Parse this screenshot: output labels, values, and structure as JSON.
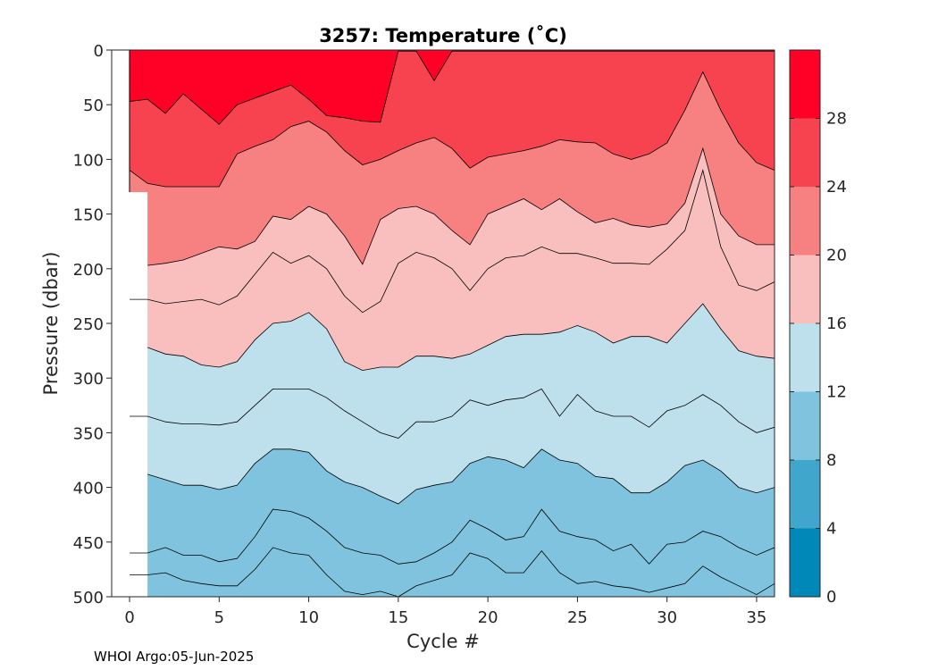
{
  "chart_data": {
    "type": "contour",
    "title": "3257:  Temperature (˚C)",
    "xlabel": "Cycle #",
    "ylabel": "Pressure (dbar)",
    "xlim": [
      -1,
      36
    ],
    "ylim": [
      0,
      500
    ],
    "y_reversed": true,
    "grid": false,
    "x_ticks": [
      0,
      5,
      10,
      15,
      20,
      25,
      30,
      35
    ],
    "y_ticks": [
      0,
      50,
      100,
      150,
      200,
      250,
      300,
      350,
      400,
      450,
      500
    ],
    "colorbar": {
      "position": "right",
      "range": [
        0,
        32
      ],
      "ticks": [
        0,
        4,
        8,
        12,
        16,
        20,
        24,
        28
      ],
      "band_edges": [
        0,
        4,
        8,
        12,
        16,
        20,
        24,
        28,
        32
      ],
      "band_colors": [
        "#0089B8",
        "#41A6CC",
        "#80C3DE",
        "#BEE0EC",
        "#F9BEBE",
        "#F78080",
        "#F7434F",
        "#FF0026"
      ]
    },
    "data_x_range": [
      0,
      36
    ],
    "no_data_region": {
      "cycles": [
        0,
        1
      ],
      "pressure_below": 130
    },
    "bands": [
      {
        "level_low": 28,
        "color": "#FF0026",
        "lower_boundary_cycles": [
          0,
          1,
          2,
          3,
          5,
          6,
          8,
          9,
          10,
          11,
          12,
          13,
          14,
          15,
          16,
          17,
          18,
          19
        ],
        "lower_boundary_pressure": [
          47,
          45,
          58,
          40,
          68,
          50,
          38,
          32,
          45,
          60,
          62,
          65,
          66,
          1,
          1,
          28,
          1,
          1
        ]
      },
      {
        "level_low": 24,
        "color": "#F7434F",
        "lower_boundary_cycles": [
          0,
          1,
          2,
          3,
          5,
          6,
          7,
          8,
          9,
          10,
          11,
          12,
          13,
          14,
          15,
          16,
          17,
          18,
          19,
          20,
          22,
          23,
          24,
          25,
          26,
          27,
          28,
          29,
          30,
          31,
          32,
          33,
          34,
          35,
          36
        ],
        "lower_boundary_pressure": [
          110,
          122,
          125,
          125,
          125,
          95,
          88,
          82,
          70,
          65,
          75,
          92,
          105,
          100,
          92,
          85,
          80,
          90,
          108,
          98,
          92,
          88,
          82,
          84,
          85,
          95,
          100,
          95,
          85,
          55,
          20,
          55,
          85,
          103,
          110
        ]
      },
      {
        "level_low": 20,
        "color": "#F78080",
        "lower_boundary_cycles": [
          1,
          2,
          3,
          5,
          6,
          7,
          8,
          9,
          10,
          11,
          12,
          13,
          14,
          15,
          16,
          17,
          18,
          19,
          20,
          22,
          23,
          24,
          25,
          26,
          27,
          28,
          29,
          30,
          31,
          32,
          33,
          34,
          35,
          36
        ],
        "lower_boundary_pressure": [
          197,
          195,
          192,
          180,
          182,
          175,
          152,
          155,
          143,
          150,
          170,
          196,
          155,
          145,
          143,
          150,
          165,
          178,
          150,
          136,
          146,
          136,
          148,
          158,
          154,
          160,
          162,
          159,
          140,
          90,
          150,
          170,
          178,
          178
        ]
      },
      {
        "level_low": 16,
        "color": "#F9BEBE",
        "lower_boundary_cycles": [
          1,
          2,
          3,
          4,
          5,
          6,
          7,
          8,
          9,
          10,
          11,
          12,
          13,
          14,
          15,
          16,
          17,
          18,
          19,
          20,
          21,
          22,
          23,
          24,
          25,
          26,
          27,
          28,
          29,
          30,
          31,
          32,
          33,
          34,
          35,
          36
        ],
        "lower_boundary_pressure": [
          272,
          278,
          280,
          288,
          290,
          285,
          265,
          250,
          248,
          240,
          255,
          285,
          293,
          290,
          290,
          280,
          280,
          282,
          278,
          270,
          262,
          260,
          260,
          258,
          252,
          258,
          268,
          262,
          262,
          268,
          250,
          232,
          255,
          275,
          280,
          282
        ]
      },
      {
        "level_low": 12,
        "color": "#BEE0EC",
        "lower_boundary_cycles": [
          1,
          2,
          3,
          4,
          5,
          6,
          7,
          8,
          9,
          10,
          11,
          12,
          13,
          14,
          15,
          16,
          17,
          18,
          19,
          20,
          21,
          22,
          23,
          24,
          25,
          26,
          27,
          28,
          29,
          30,
          31,
          32,
          33,
          34,
          35,
          36
        ],
        "lower_boundary_pressure": [
          388,
          393,
          398,
          398,
          402,
          398,
          378,
          365,
          365,
          368,
          385,
          395,
          400,
          408,
          415,
          402,
          398,
          395,
          378,
          372,
          375,
          382,
          365,
          375,
          378,
          390,
          392,
          405,
          405,
          395,
          380,
          375,
          385,
          400,
          405,
          400
        ]
      },
      {
        "level_low": 8,
        "color": "#80C3DE",
        "lower_boundary_cycles": [
          0,
          36
        ],
        "lower_boundary_pressure": [
          500,
          500
        ]
      }
    ],
    "contour_lines": [
      {
        "level": 18,
        "cycles": [
          1,
          2,
          3,
          4,
          5,
          6,
          7,
          8,
          9,
          10,
          11,
          12,
          13,
          14,
          15,
          16,
          17,
          18,
          19,
          20,
          21,
          22,
          23,
          24,
          25,
          26,
          27,
          28,
          29,
          30,
          31,
          32,
          33,
          34,
          35,
          36
        ],
        "pressure": [
          228,
          232,
          230,
          228,
          233,
          225,
          205,
          185,
          195,
          188,
          200,
          225,
          240,
          230,
          195,
          185,
          190,
          200,
          220,
          200,
          190,
          188,
          180,
          186,
          186,
          190,
          195,
          195,
          196,
          182,
          165,
          110,
          180,
          215,
          220,
          212
        ]
      },
      {
        "level": 14,
        "cycles": [
          1,
          2,
          3,
          4,
          5,
          6,
          7,
          8,
          9,
          10,
          11,
          12,
          13,
          14,
          15,
          16,
          17,
          18,
          19,
          20,
          21,
          22,
          23,
          24,
          25,
          26,
          27,
          28,
          29,
          30,
          31,
          32,
          33,
          34,
          35,
          36
        ],
        "pressure": [
          335,
          340,
          342,
          342,
          343,
          340,
          325,
          310,
          310,
          310,
          318,
          330,
          340,
          350,
          355,
          340,
          340,
          335,
          320,
          325,
          320,
          318,
          310,
          335,
          315,
          330,
          335,
          335,
          345,
          330,
          325,
          315,
          325,
          340,
          350,
          345
        ]
      },
      {
        "level": 10,
        "cycles": [
          1,
          2,
          3,
          4,
          5,
          6,
          7,
          8,
          9,
          10,
          11,
          12,
          13,
          14,
          15,
          16,
          17,
          18,
          19,
          20,
          21,
          22,
          23,
          24,
          25,
          26,
          27,
          28,
          29,
          30,
          31,
          32,
          33,
          34,
          35,
          36
        ],
        "pressure": [
          460,
          455,
          462,
          462,
          468,
          465,
          445,
          420,
          422,
          428,
          440,
          455,
          460,
          462,
          470,
          468,
          460,
          450,
          430,
          438,
          448,
          445,
          420,
          440,
          445,
          448,
          458,
          452,
          470,
          452,
          450,
          440,
          445,
          455,
          462,
          455
        ]
      },
      {
        "level": 9,
        "cycles": [
          1,
          2,
          3,
          4,
          5,
          6,
          7,
          8,
          9,
          10,
          11,
          12,
          13,
          14,
          15,
          16,
          17,
          18,
          19,
          20,
          21,
          22,
          23,
          24,
          25,
          26,
          27,
          28,
          29,
          30,
          31,
          32,
          33,
          34,
          35,
          36
        ],
        "pressure": [
          480,
          478,
          485,
          488,
          490,
          490,
          475,
          455,
          460,
          462,
          480,
          495,
          498,
          495,
          500,
          490,
          485,
          480,
          460,
          465,
          478,
          478,
          458,
          478,
          488,
          486,
          490,
          492,
          496,
          492,
          488,
          472,
          482,
          490,
          498,
          488
        ]
      }
    ]
  },
  "footer": {
    "text": "WHOI Argo:05-Jun-2025"
  }
}
